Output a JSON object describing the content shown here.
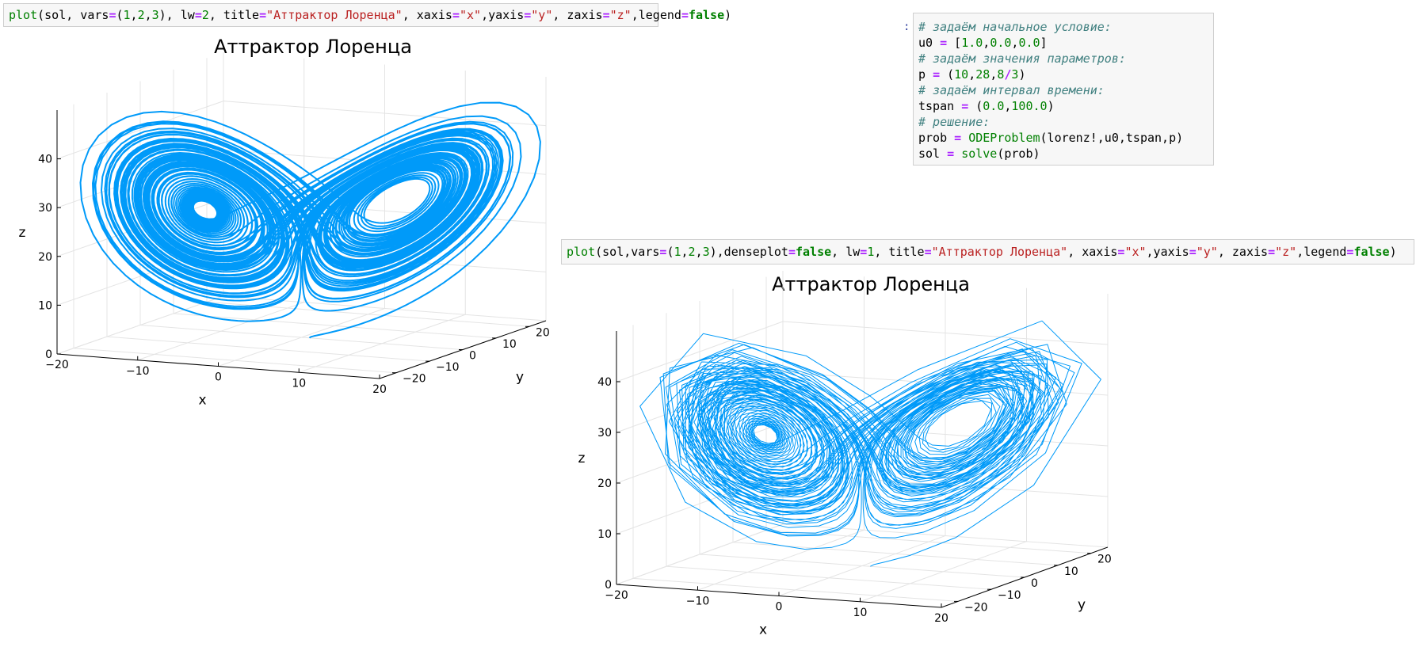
{
  "cell1": {
    "tokens": [
      {
        "t": "plot",
        "c": "fn"
      },
      {
        "t": "(sol, vars",
        "c": ""
      },
      {
        "t": "=",
        "c": "op"
      },
      {
        "t": "(",
        "c": ""
      },
      {
        "t": "1",
        "c": "num"
      },
      {
        "t": ",",
        "c": ""
      },
      {
        "t": "2",
        "c": "num"
      },
      {
        "t": ",",
        "c": ""
      },
      {
        "t": "3",
        "c": "num"
      },
      {
        "t": "), lw",
        "c": ""
      },
      {
        "t": "=",
        "c": "op"
      },
      {
        "t": "2",
        "c": "num"
      },
      {
        "t": ", title",
        "c": ""
      },
      {
        "t": "=",
        "c": "op"
      },
      {
        "t": "\"Аттрактор Лоренца\"",
        "c": "str"
      },
      {
        "t": ", xaxis",
        "c": ""
      },
      {
        "t": "=",
        "c": "op"
      },
      {
        "t": "\"x\"",
        "c": "str"
      },
      {
        "t": ",yaxis",
        "c": ""
      },
      {
        "t": "=",
        "c": "op"
      },
      {
        "t": "\"y\"",
        "c": "str"
      },
      {
        "t": ", zaxis",
        "c": ""
      },
      {
        "t": "=",
        "c": "op"
      },
      {
        "t": "\"z\"",
        "c": "str"
      },
      {
        "t": ",legend",
        "c": ""
      },
      {
        "t": "=",
        "c": "op"
      },
      {
        "t": "false",
        "c": "kw"
      },
      {
        "t": ")",
        "c": ""
      }
    ]
  },
  "cell2": {
    "prompt": ":",
    "lines": [
      [
        {
          "t": "# задаём начальное условие:",
          "c": "com"
        }
      ],
      [
        {
          "t": "u0 ",
          "c": ""
        },
        {
          "t": "=",
          "c": "op"
        },
        {
          "t": " [",
          "c": ""
        },
        {
          "t": "1.0",
          "c": "num"
        },
        {
          "t": ",",
          "c": ""
        },
        {
          "t": "0.0",
          "c": "num"
        },
        {
          "t": ",",
          "c": ""
        },
        {
          "t": "0.0",
          "c": "num"
        },
        {
          "t": "]",
          "c": ""
        }
      ],
      [
        {
          "t": "# задаём значения параметров:",
          "c": "com"
        }
      ],
      [
        {
          "t": "p ",
          "c": ""
        },
        {
          "t": "=",
          "c": "op"
        },
        {
          "t": " (",
          "c": ""
        },
        {
          "t": "10",
          "c": "num"
        },
        {
          "t": ",",
          "c": ""
        },
        {
          "t": "28",
          "c": "num"
        },
        {
          "t": ",",
          "c": ""
        },
        {
          "t": "8",
          "c": "num"
        },
        {
          "t": "/",
          "c": "op"
        },
        {
          "t": "3",
          "c": "num"
        },
        {
          "t": ")",
          "c": ""
        }
      ],
      [
        {
          "t": "# задаём интервал времени:",
          "c": "com"
        }
      ],
      [
        {
          "t": "tspan ",
          "c": ""
        },
        {
          "t": "=",
          "c": "op"
        },
        {
          "t": " (",
          "c": ""
        },
        {
          "t": "0.0",
          "c": "num"
        },
        {
          "t": ",",
          "c": ""
        },
        {
          "t": "100.0",
          "c": "num"
        },
        {
          "t": ")",
          "c": ""
        }
      ],
      [
        {
          "t": "# решение:",
          "c": "com"
        }
      ],
      [
        {
          "t": "prob ",
          "c": ""
        },
        {
          "t": "=",
          "c": "op"
        },
        {
          "t": " ",
          "c": ""
        },
        {
          "t": "ODEProblem",
          "c": "fn"
        },
        {
          "t": "(lorenz!,u0,tspan,p)",
          "c": ""
        }
      ],
      [
        {
          "t": "sol ",
          "c": ""
        },
        {
          "t": "=",
          "c": "op"
        },
        {
          "t": " ",
          "c": ""
        },
        {
          "t": "solve",
          "c": "fn"
        },
        {
          "t": "(prob)",
          "c": ""
        }
      ]
    ]
  },
  "cell3": {
    "tokens": [
      {
        "t": "plot",
        "c": "fn"
      },
      {
        "t": "(sol,vars",
        "c": ""
      },
      {
        "t": "=",
        "c": "op"
      },
      {
        "t": "(",
        "c": ""
      },
      {
        "t": "1",
        "c": "num"
      },
      {
        "t": ",",
        "c": ""
      },
      {
        "t": "2",
        "c": "num"
      },
      {
        "t": ",",
        "c": ""
      },
      {
        "t": "3",
        "c": "num"
      },
      {
        "t": "),denseplot",
        "c": ""
      },
      {
        "t": "=",
        "c": "op"
      },
      {
        "t": "false",
        "c": "kw"
      },
      {
        "t": ", lw",
        "c": ""
      },
      {
        "t": "=",
        "c": "op"
      },
      {
        "t": "1",
        "c": "num"
      },
      {
        "t": ", title",
        "c": ""
      },
      {
        "t": "=",
        "c": "op"
      },
      {
        "t": "\"Аттрактор Лоренца\"",
        "c": "str"
      },
      {
        "t": ", xaxis",
        "c": ""
      },
      {
        "t": "=",
        "c": "op"
      },
      {
        "t": "\"x\"",
        "c": "str"
      },
      {
        "t": ",yaxis",
        "c": ""
      },
      {
        "t": "=",
        "c": "op"
      },
      {
        "t": "\"y\"",
        "c": "str"
      },
      {
        "t": ", zaxis",
        "c": ""
      },
      {
        "t": "=",
        "c": "op"
      },
      {
        "t": "\"z\"",
        "c": "str"
      },
      {
        "t": ",legend",
        "c": ""
      },
      {
        "t": "=",
        "c": "op"
      },
      {
        "t": "false",
        "c": "kw"
      },
      {
        "t": ")",
        "c": ""
      }
    ]
  },
  "plot1": {
    "title": "Аттрактор Лоренца",
    "xlabel": "x",
    "ylabel": "y",
    "zlabel": "z",
    "xticks": [
      "−20",
      "−10",
      "0",
      "10",
      "20"
    ],
    "yticks": [
      "−20",
      "−10",
      "0",
      "10",
      "20"
    ],
    "zticks": [
      "0",
      "10",
      "20",
      "30",
      "40"
    ],
    "color": "#009af9"
  },
  "plot2": {
    "title": "Аттрактор Лоренца",
    "xlabel": "x",
    "ylabel": "y",
    "zlabel": "z",
    "xticks": [
      "−20",
      "−10",
      "0",
      "10",
      "20"
    ],
    "yticks": [
      "−20",
      "−10",
      "0",
      "10",
      "20"
    ],
    "zticks": [
      "0",
      "10",
      "20",
      "30",
      "40"
    ],
    "color": "#009af9"
  },
  "chart_data": [
    {
      "type": "line",
      "title": "Аттрактор Лоренца",
      "xlabel": "x",
      "ylabel": "y",
      "zlabel": "z",
      "xlim": [
        -20,
        20
      ],
      "ylim": [
        -25,
        25
      ],
      "zlim": [
        0,
        50
      ],
      "model": {
        "sigma": 10,
        "rho": 28,
        "beta": 2.6667,
        "u0": [
          1.0,
          0.0,
          0.0
        ],
        "tspan": [
          0.0,
          100.0
        ]
      },
      "line_width": 2,
      "dense": true,
      "legend": false
    },
    {
      "type": "line",
      "title": "Аттрактор Лоренца",
      "xlabel": "x",
      "ylabel": "y",
      "zlabel": "z",
      "xlim": [
        -20,
        20
      ],
      "ylim": [
        -25,
        25
      ],
      "zlim": [
        0,
        50
      ],
      "model": {
        "sigma": 10,
        "rho": 28,
        "beta": 2.6667,
        "u0": [
          1.0,
          0.0,
          0.0
        ],
        "tspan": [
          0.0,
          100.0
        ]
      },
      "line_width": 1,
      "dense": false,
      "legend": false
    }
  ]
}
